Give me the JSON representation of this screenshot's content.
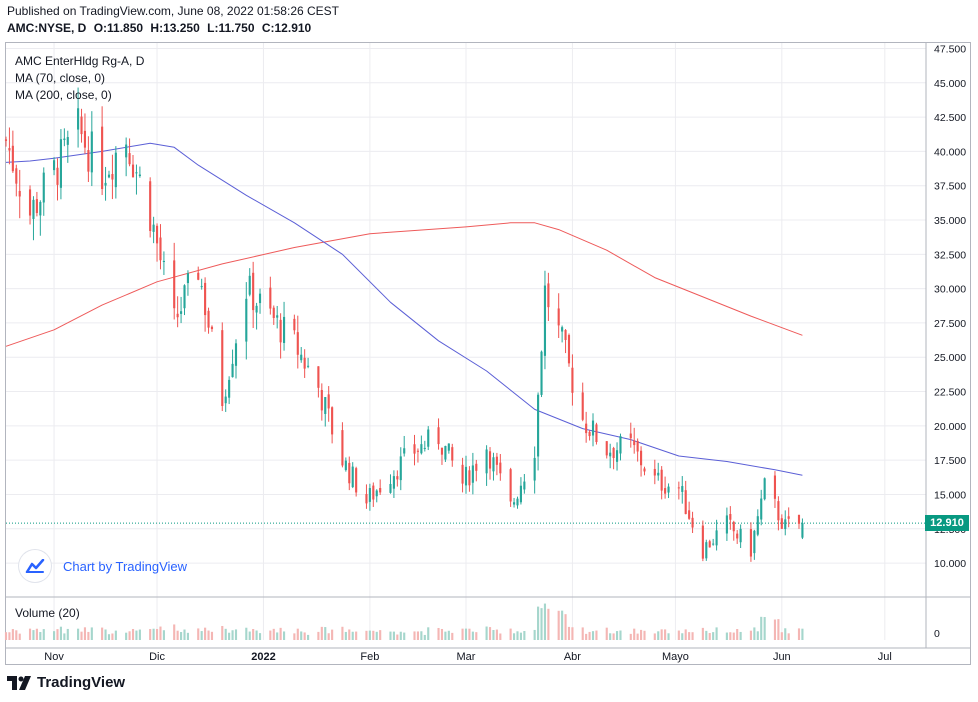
{
  "header": {
    "published": "Published on TradingView.com, June 08, 2022 01:58:26 CEST",
    "symbol": "AMC:NYSE, D",
    "open": "O:11.850",
    "high": "H:13.250",
    "low": "L:11.750",
    "close": "C:12.910"
  },
  "legend": {
    "title": "AMC EnterHldg Rg-A, D",
    "ma70": "MA (70, close, 0)",
    "ma200": "MA (200, close, 0)",
    "volume": "Volume (20)"
  },
  "watermark": {
    "text": "Chart by TradingView",
    "icon": "tradingview-cloud-icon"
  },
  "footer": {
    "brand": "TradingView",
    "icon": "tradingview-logo-icon"
  },
  "price_tag": "12.910",
  "colors": {
    "up": "#26a69a",
    "down": "#ef5350",
    "up_volume": "#a5d6cc",
    "down_volume": "#f4b6b4",
    "ma70": "#5b5fd6",
    "ma200": "#ee5a5a",
    "last_price": "#089981",
    "grid": "#ececf0",
    "border": "#b2b5be"
  },
  "chart_data": {
    "type": "candlestick",
    "title": "AMC EnterHldg Rg-A, D",
    "x_axis_labels": [
      "Nov",
      "Dic",
      "2022",
      "Feb",
      "Mar",
      "Abr",
      "Mayo",
      "Jun",
      "Jul"
    ],
    "x_axis_label_dates": [
      "2021-11-01",
      "2021-12-01",
      "2022-01-01",
      "2022-02-01",
      "2022-03-01",
      "2022-04-01",
      "2022-05-01",
      "2022-06-01",
      "2022-07-01"
    ],
    "x_range": [
      "2021-10-18",
      "2022-07-13"
    ],
    "y_ticks": [
      "47.500",
      "45.000",
      "42.500",
      "40.000",
      "37.500",
      "35.000",
      "32.500",
      "30.000",
      "27.500",
      "25.000",
      "22.500",
      "20.000",
      "17.500",
      "15.000",
      "12.500",
      "10.000"
    ],
    "ylim": [
      7.6,
      47.9
    ],
    "volume_tick": "0",
    "last_price": 12.91,
    "grid": true,
    "anchors_close": [
      [
        "2021-10-18",
        40.8
      ],
      [
        "2021-10-25",
        35.5
      ],
      [
        "2021-11-01",
        38.5
      ],
      [
        "2021-11-08",
        41.5
      ],
      [
        "2021-11-15",
        38.5
      ],
      [
        "2021-11-22",
        41.0
      ],
      [
        "2021-11-29",
        35.5
      ],
      [
        "2021-12-06",
        27.5
      ],
      [
        "2021-12-13",
        31.5
      ],
      [
        "2021-12-20",
        22.0
      ],
      [
        "2021-12-27",
        30.0
      ],
      [
        "2022-01-03",
        28.0
      ],
      [
        "2022-01-10",
        26.0
      ],
      [
        "2022-01-17",
        22.8
      ],
      [
        "2022-01-24",
        17.5
      ],
      [
        "2022-01-31",
        14.5
      ],
      [
        "2022-02-07",
        16.5
      ],
      [
        "2022-02-14",
        18.2
      ],
      [
        "2022-02-21",
        19.2
      ],
      [
        "2022-02-28",
        15.8
      ],
      [
        "2022-03-07",
        18.5
      ],
      [
        "2022-03-14",
        14.0
      ],
      [
        "2022-03-21",
        18.5
      ],
      [
        "2022-03-24",
        29.8
      ],
      [
        "2022-03-29",
        26.0
      ],
      [
        "2022-04-04",
        20.5
      ],
      [
        "2022-04-11",
        18.3
      ],
      [
        "2022-04-18",
        18.5
      ],
      [
        "2022-04-25",
        16.0
      ],
      [
        "2022-05-02",
        15.5
      ],
      [
        "2022-05-09",
        11.0
      ],
      [
        "2022-05-16",
        12.8
      ],
      [
        "2022-05-23",
        11.0
      ],
      [
        "2022-05-27",
        15.5
      ],
      [
        "2022-06-02",
        12.6
      ],
      [
        "2022-06-07",
        12.91
      ]
    ],
    "series": [
      {
        "name": "MA (70, close, 0)",
        "type": "line",
        "points": [
          [
            "2021-10-18",
            39.2
          ],
          [
            "2021-10-25",
            39.3
          ],
          [
            "2021-11-01",
            39.5
          ],
          [
            "2021-11-15",
            40.0
          ],
          [
            "2021-11-29",
            40.6
          ],
          [
            "2021-12-06",
            40.3
          ],
          [
            "2021-12-13",
            39.0
          ],
          [
            "2021-12-27",
            36.8
          ],
          [
            "2022-01-10",
            34.8
          ],
          [
            "2022-01-24",
            32.5
          ],
          [
            "2022-02-07",
            29.0
          ],
          [
            "2022-02-21",
            26.2
          ],
          [
            "2022-03-07",
            24.0
          ],
          [
            "2022-03-21",
            21.2
          ],
          [
            "2022-04-04",
            19.8
          ],
          [
            "2022-04-18",
            19.0
          ],
          [
            "2022-05-02",
            17.8
          ],
          [
            "2022-05-16",
            17.4
          ],
          [
            "2022-05-30",
            16.8
          ],
          [
            "2022-06-07",
            16.4
          ]
        ]
      },
      {
        "name": "MA (200, close, 0)",
        "type": "line",
        "points": [
          [
            "2021-10-18",
            25.8
          ],
          [
            "2021-11-01",
            27.0
          ],
          [
            "2021-11-15",
            28.8
          ],
          [
            "2021-12-01",
            30.5
          ],
          [
            "2021-12-20",
            31.8
          ],
          [
            "2022-01-10",
            33.0
          ],
          [
            "2022-02-01",
            34.0
          ],
          [
            "2022-03-01",
            34.5
          ],
          [
            "2022-03-14",
            34.8
          ],
          [
            "2022-03-21",
            34.8
          ],
          [
            "2022-03-28",
            34.3
          ],
          [
            "2022-04-11",
            32.8
          ],
          [
            "2022-04-25",
            30.8
          ],
          [
            "2022-05-09",
            29.4
          ],
          [
            "2022-05-23",
            28.0
          ],
          [
            "2022-06-07",
            26.6
          ]
        ]
      }
    ]
  }
}
